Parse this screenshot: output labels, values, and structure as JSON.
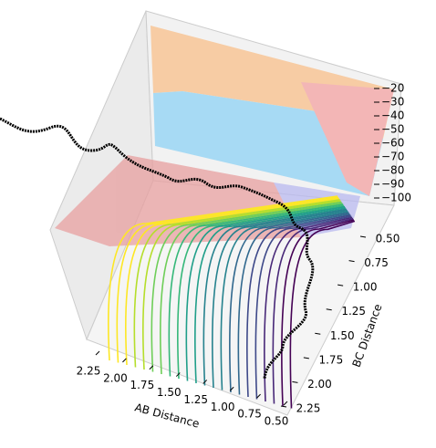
{
  "chart_data": {
    "type": "surface3d",
    "xlabel": "AB Distance",
    "ylabel": "BC Distance",
    "xlim": [
      2.25,
      0.5
    ],
    "ylim": [
      0.5,
      2.25
    ],
    "zlim": [
      -20,
      -100
    ],
    "xticks": [
      2.25,
      {
        "value": 2.0,
        "label": "2.00"
      },
      1.75,
      {
        "value": 1.5,
        "label": "1.50"
      },
      1.25,
      {
        "value": 1.0,
        "label": "1.00"
      },
      0.75,
      {
        "value": 0.5,
        "label": "0.50"
      }
    ],
    "yticks": [
      {
        "value": 0.5,
        "label": "0.50"
      },
      0.75,
      {
        "value": 1.0,
        "label": "1.00"
      },
      1.25,
      {
        "value": 1.5,
        "label": "1.50"
      },
      1.75,
      {
        "value": 2.0,
        "label": "2.00"
      },
      2.25
    ],
    "zticks": [
      {
        "value": -20,
        "label": "−20"
      },
      {
        "value": -30,
        "label": "−30"
      },
      {
        "value": -40,
        "label": "−40"
      },
      {
        "value": -50,
        "label": "−50"
      },
      {
        "value": -60,
        "label": "−60"
      },
      {
        "value": -70,
        "label": "−70"
      },
      {
        "value": -80,
        "label": "−80"
      },
      {
        "value": -90,
        "label": "−90"
      },
      {
        "value": -100,
        "label": "−100"
      }
    ]
  }
}
